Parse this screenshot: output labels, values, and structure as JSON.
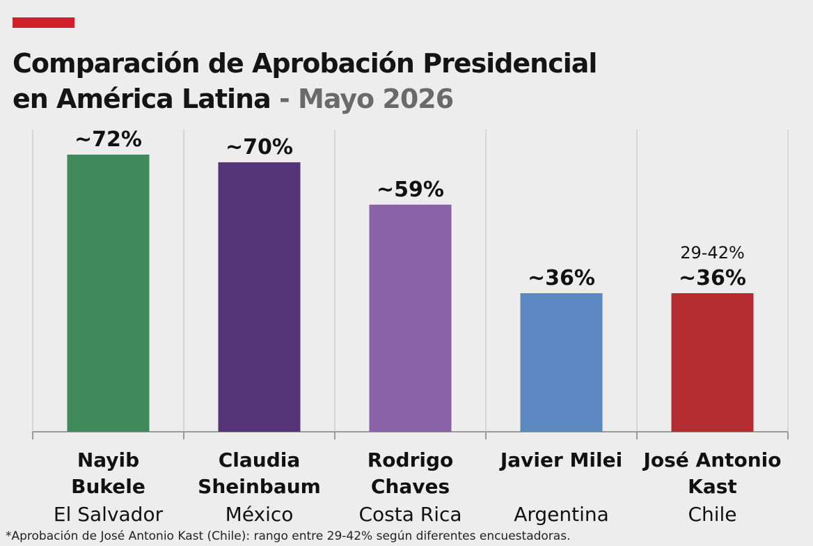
{
  "colors": {
    "accent": "#d11f2e",
    "background": "#ededed",
    "grid": "#cfcfcf",
    "axis": "#9a9a9a"
  },
  "title": {
    "line1": "Comparación de Aprobación Presidencial",
    "line2": "en América Latina",
    "separator": "-",
    "date": "Mayo 2026"
  },
  "chart_data": {
    "type": "bar",
    "title": "Comparación de Aprobación Presidencial en América Latina - Mayo 2026",
    "ylim": [
      0,
      100
    ],
    "grid": true,
    "categories": [
      "Nayib Bukele",
      "Claudia Sheinbaum",
      "Rodrigo Chaves",
      "Javier Milei",
      "José Antonio Kast"
    ],
    "values": [
      72,
      70,
      59,
      36,
      36
    ],
    "bars": [
      {
        "name_lines": [
          "Nayib",
          "Bukele"
        ],
        "country": "El Salvador",
        "value": 72,
        "label": "~72%",
        "color": "#3f8a5a"
      },
      {
        "name_lines": [
          "Claudia",
          "Sheinbaum"
        ],
        "country": "México",
        "value": 70,
        "label": "~70%",
        "color": "#553477"
      },
      {
        "name_lines": [
          "Rodrigo",
          "Chaves"
        ],
        "country": "Costa Rica",
        "value": 59,
        "label": "~59%",
        "color": "#8a62a8"
      },
      {
        "name_lines": [
          "Javier Milei"
        ],
        "country": "Argentina",
        "value": 36,
        "label": "~36%",
        "color": "#5c88c2"
      },
      {
        "name_lines": [
          "José Antonio",
          "Kast"
        ],
        "country": "Chile",
        "value": 36,
        "label": "~36%",
        "range_label": "29-42%",
        "color": "#b52d31"
      }
    ]
  },
  "footnote": "*Aprobación de José Antonio Kast (Chile): rango entre 29-42% según diferentes encuestadoras."
}
